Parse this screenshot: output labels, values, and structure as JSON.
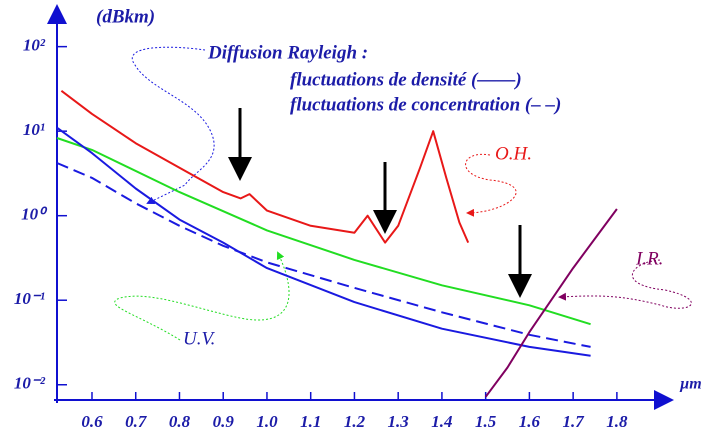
{
  "chart_data": {
    "type": "line",
    "y_label": "(dBkm)",
    "x_label": "µm",
    "annotations": [
      "Diffusion Rayleigh :",
      "fluctuations de densité (——)",
      "fluctuations de concentration  (– –)",
      "O.H.",
      "I.R.",
      "U.V."
    ],
    "log_y": true,
    "xlim": [
      0.52,
      1.91
    ],
    "ylim": [
      0.0066,
      250
    ],
    "xticks": [
      0.6,
      0.7,
      0.8,
      0.9,
      {
        "value": 1,
        "label": "1.0"
      },
      1.1,
      1.2,
      1.3,
      1.4,
      1.5,
      1.6,
      1.7,
      1.8
    ],
    "yticks": [
      {
        "value": 100,
        "label": "10²"
      },
      {
        "value": 10,
        "label": "10¹"
      },
      {
        "value": 1,
        "label": "10⁰"
      },
      {
        "value": 0.1,
        "label": "10⁻¹"
      },
      {
        "value": 0.01,
        "label": "10⁻²"
      }
    ],
    "axis_color": "#1010d0",
    "series": [
      {
        "color": "#e81818",
        "dashed": false,
        "x": [
          0.53,
          0.6,
          0.7,
          0.8,
          0.9,
          0.94,
          0.96,
          1.0,
          1.1,
          1.2,
          1.23,
          1.27,
          1.3,
          1.35,
          1.38,
          1.41,
          1.44,
          1.46
        ],
        "values": [
          30,
          16,
          7.2,
          3.7,
          1.9,
          1.6,
          1.8,
          1.15,
          0.76,
          0.63,
          1.0,
          0.48,
          0.76,
          3.7,
          10,
          2.8,
          0.83,
          0.48
        ]
      },
      {
        "color": "#22dd22",
        "dashed": false,
        "x": [
          0.52,
          0.6,
          0.8,
          1.0,
          1.2,
          1.4,
          1.6,
          1.74
        ],
        "values": [
          8.3,
          6,
          1.9,
          0.67,
          0.3,
          0.15,
          0.087,
          0.052
        ]
      },
      {
        "color": "#1a1ae0",
        "dashed": false,
        "x": [
          0.52,
          0.6,
          0.7,
          0.8,
          0.9,
          1.0,
          1.2,
          1.4,
          1.6,
          1.74
        ],
        "values": [
          11,
          5.5,
          2.1,
          0.9,
          0.48,
          0.24,
          0.095,
          0.046,
          0.028,
          0.022
        ]
      },
      {
        "color": "#1a1ae0",
        "dashed": true,
        "x": [
          0.52,
          0.6,
          0.7,
          0.8,
          0.9,
          1.0,
          1.2,
          1.4,
          1.6,
          1.74
        ],
        "values": [
          4.2,
          2.8,
          1.4,
          0.76,
          0.44,
          0.28,
          0.14,
          0.072,
          0.039,
          0.028
        ]
      },
      {
        "color": "#800060",
        "dashed": false,
        "x": [
          1.5,
          1.55,
          1.6,
          1.7,
          1.8
        ],
        "values": [
          0.0072,
          0.016,
          0.042,
          0.24,
          1.2
        ]
      }
    ]
  }
}
